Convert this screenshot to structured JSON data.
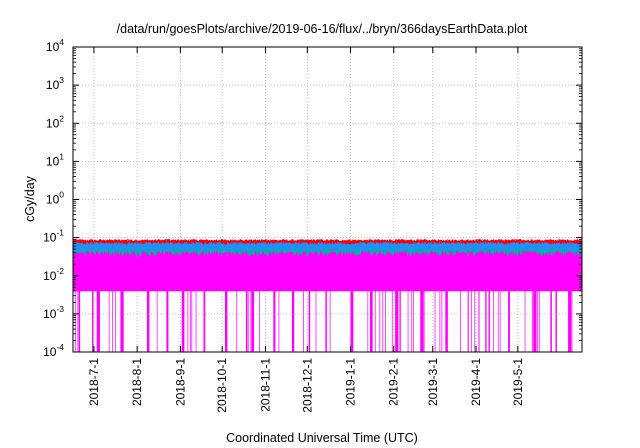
{
  "chart_data": {
    "type": "line",
    "title": "/data/run/goesPlots/archive/2019-06-16/flux/../bryn/366daysEarthData.plot",
    "xlabel": "Coordinated Universal Time (UTC)",
    "ylabel": "cGy/day",
    "yscale": "log",
    "ylim": [
      0.0001,
      10000
    ],
    "xlim": [
      "2018-06-16",
      "2019-06-16"
    ],
    "grid": true,
    "y_ticks": [
      {
        "value": 0.0001,
        "base": "10",
        "exp": "-4"
      },
      {
        "value": 0.001,
        "base": "10",
        "exp": "-3"
      },
      {
        "value": 0.01,
        "base": "10",
        "exp": "-2"
      },
      {
        "value": 0.1,
        "base": "10",
        "exp": "-1"
      },
      {
        "value": 1,
        "base": "10",
        "exp": "0"
      },
      {
        "value": 10,
        "base": "10",
        "exp": "1"
      },
      {
        "value": 100,
        "base": "10",
        "exp": "2"
      },
      {
        "value": 1000,
        "base": "10",
        "exp": "3"
      },
      {
        "value": 10000,
        "base": "10",
        "exp": "4"
      }
    ],
    "x_ticks": [
      {
        "date": "2018-07-01",
        "label": "2018-7-1"
      },
      {
        "date": "2018-08-01",
        "label": "2018-8-1"
      },
      {
        "date": "2018-09-01",
        "label": "2018-9-1"
      },
      {
        "date": "2018-10-01",
        "label": "2018-10-1"
      },
      {
        "date": "2018-11-01",
        "label": "2018-11-1"
      },
      {
        "date": "2018-12-01",
        "label": "2018-12-1"
      },
      {
        "date": "2019-01-01",
        "label": "2019-1-1"
      },
      {
        "date": "2019-02-01",
        "label": "2019-2-1"
      },
      {
        "date": "2019-03-01",
        "label": "2019-3-1"
      },
      {
        "date": "2019-04-01",
        "label": "2019-4-1"
      },
      {
        "date": "2019-05-01",
        "label": "2019-5-1"
      }
    ],
    "series": [
      {
        "color": "#ff0000",
        "typical": 0.075,
        "low": 0.06,
        "high": 0.09
      },
      {
        "color": "#1e90ff",
        "typical": 0.06,
        "low": 0.045,
        "high": 0.075
      },
      {
        "color": "#00b0a0",
        "typical": 0.04,
        "low": 0.03,
        "high": 0.05
      },
      {
        "color": "#ff00ff",
        "typical": 0.025,
        "low": 0.004,
        "high": 0.045
      }
    ],
    "dropout_dates": [
      "2018-06-20",
      "2018-07-03",
      "2018-07-20",
      "2018-08-08",
      "2018-08-22",
      "2018-09-02",
      "2018-09-18",
      "2018-10-03",
      "2018-10-18",
      "2018-10-22",
      "2018-11-07",
      "2018-11-20",
      "2018-12-02",
      "2018-12-14",
      "2019-01-01",
      "2019-01-15",
      "2019-02-02",
      "2019-02-20",
      "2019-03-10",
      "2019-03-26",
      "2019-04-10",
      "2019-04-24",
      "2019-05-12",
      "2019-05-28",
      "2019-06-06"
    ],
    "dropout_min": 0.0001
  }
}
